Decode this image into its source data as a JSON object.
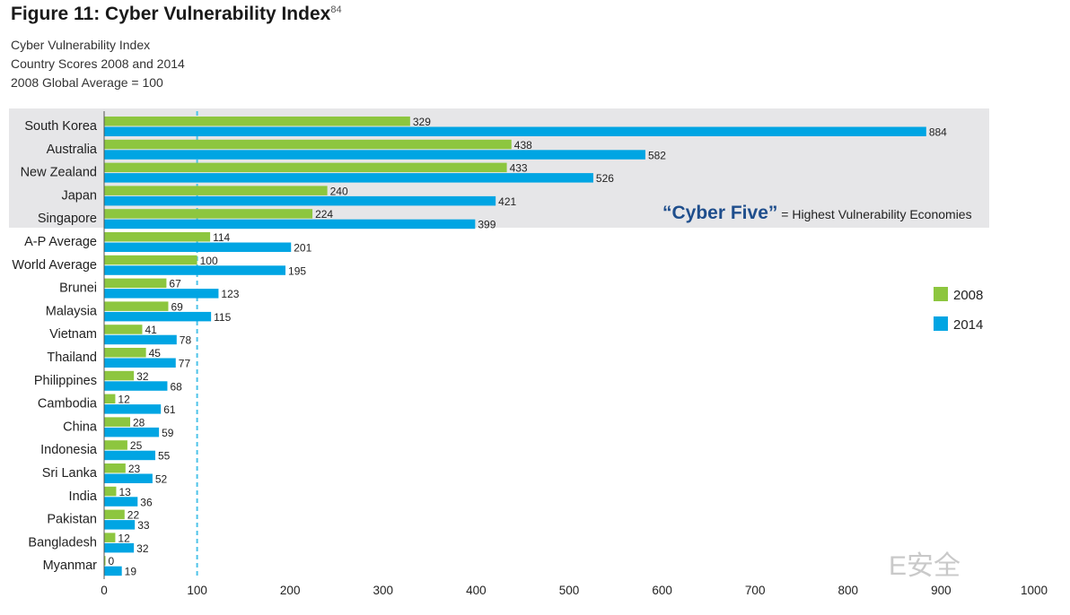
{
  "figure": {
    "title": "Figure 11: Cyber Vulnerability Index",
    "footnote_ref": "84",
    "subtitle_lines": [
      "Cyber Vulnerability  Index",
      "Country Scores 2008 and 2014",
      "2008 Global Average = 100"
    ]
  },
  "watermark": "E安全",
  "chart_data": {
    "type": "bar",
    "orientation": "horizontal",
    "title": "Cyber Vulnerability  Index",
    "categories": [
      "South Korea",
      "Australia",
      "New Zealand",
      "Japan",
      "Singapore",
      "A-P Average",
      "World Average",
      "Brunei",
      "Malaysia",
      "Vietnam",
      "Thailand",
      "Philippines",
      "Cambodia",
      "China",
      "Indonesia",
      "Sri Lanka",
      "India",
      "Pakistan",
      "Bangladesh",
      "Myanmar"
    ],
    "series": [
      {
        "name": "2008",
        "color": "#8dc63f",
        "values": [
          329,
          438,
          433,
          240,
          224,
          114,
          100,
          67,
          69,
          41,
          45,
          32,
          12,
          28,
          25,
          23,
          13,
          22,
          12,
          0
        ]
      },
      {
        "name": "2014",
        "color": "#00a5e3",
        "values": [
          884,
          582,
          526,
          421,
          399,
          201,
          195,
          123,
          115,
          78,
          77,
          68,
          61,
          59,
          55,
          52,
          36,
          33,
          32,
          19
        ]
      }
    ],
    "xlim": [
      0,
      1000
    ],
    "xticks": [
      0,
      100,
      200,
      300,
      400,
      500,
      600,
      700,
      800,
      900,
      1000
    ],
    "reference_line": {
      "value": 100,
      "color": "#4dc3e8"
    },
    "highlight_group": {
      "count": 5,
      "label": "“Cyber Five”",
      "label_suffix": " = Highest Vulnerability Economies",
      "label_color": "#1f4e8c",
      "background": "#e6e6e8"
    },
    "legend": {
      "position": "right"
    },
    "grid": false
  }
}
